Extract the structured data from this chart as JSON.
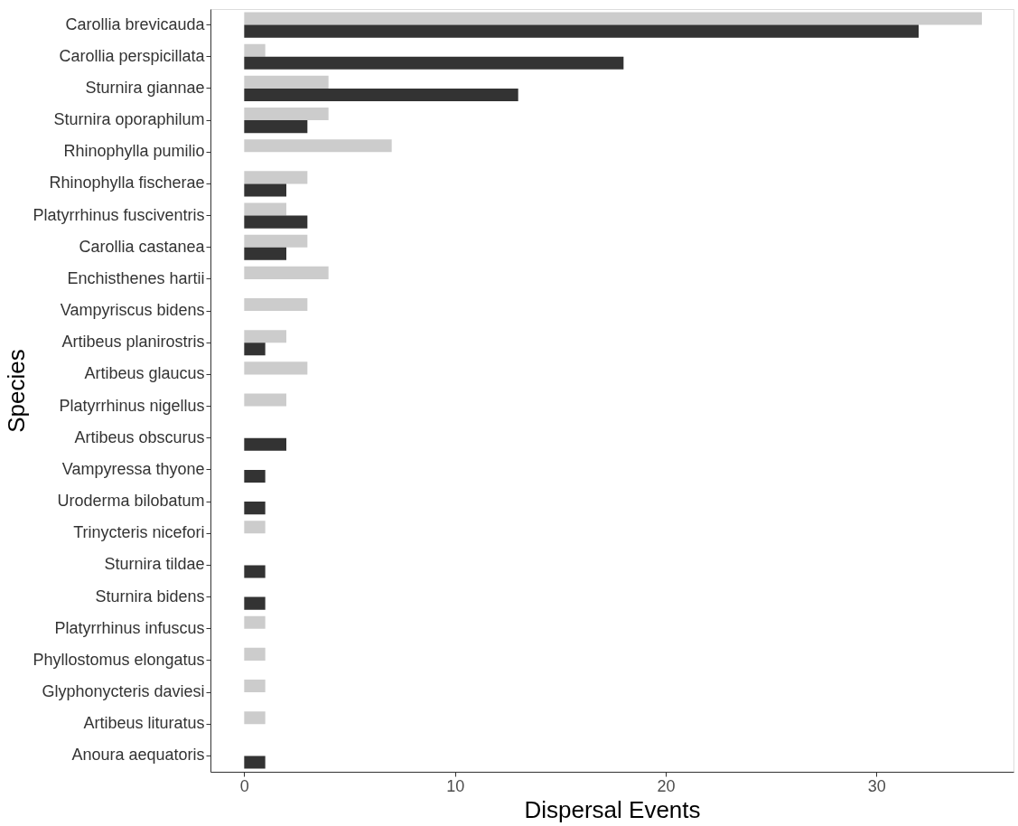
{
  "chart_data": {
    "type": "bar",
    "orientation": "horizontal",
    "xlabel": "Dispersal Events",
    "ylabel": "Species",
    "categories": [
      "Carollia brevicauda",
      "Carollia perspicillata",
      "Sturnira giannae",
      "Sturnira oporaphilum",
      "Rhinophylla pumilio",
      "Rhinophylla fischerae",
      "Platyrrhinus fusciventris",
      "Carollia castanea",
      "Enchisthenes hartii",
      "Vampyriscus bidens",
      "Artibeus planirostris",
      "Artibeus glaucus",
      "Platyrrhinus nigellus",
      "Artibeus obscurus",
      "Vampyressa  thyone",
      "Uroderma bilobatum",
      "Trinycteris nicefori",
      "Sturnira tildae",
      "Sturnira bidens",
      "Platyrrhinus infuscus",
      "Phyllostomus elongatus",
      "Glyphonycteris daviesi",
      "Artibeus lituratus",
      "Anoura aequatoris"
    ],
    "series": [
      {
        "color": "#cccccc",
        "values": [
          35,
          1,
          4,
          4,
          7,
          3,
          2,
          3,
          4,
          3,
          2,
          3,
          2,
          null,
          null,
          null,
          1,
          null,
          null,
          1,
          1,
          1,
          1,
          null
        ]
      },
      {
        "color": "#333333",
        "values": [
          32,
          18,
          13,
          3,
          null,
          2,
          3,
          2,
          null,
          null,
          1,
          null,
          null,
          2,
          1,
          1,
          null,
          1,
          1,
          null,
          null,
          null,
          null,
          1
        ]
      }
    ],
    "xlim": [
      -1.6,
      36.5
    ],
    "xticks": [
      0,
      10,
      20,
      30
    ],
    "grid": false,
    "legend": false
  }
}
